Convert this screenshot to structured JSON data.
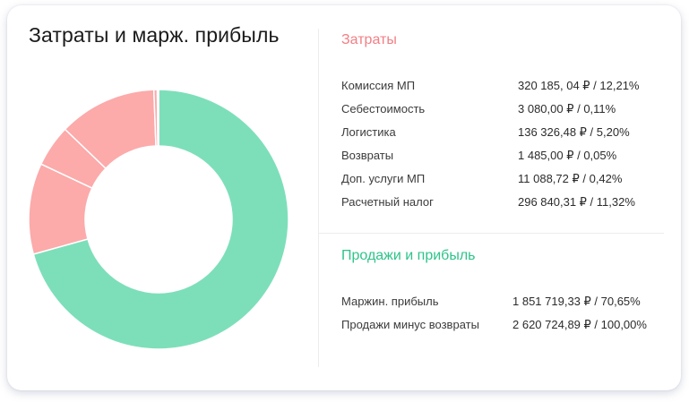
{
  "card": {
    "title": "Затраты и марж. прибыль"
  },
  "costs": {
    "title": "Затраты",
    "color": "#f27f84",
    "rows": [
      {
        "label": "Комиссия МП",
        "value": "320 185, 04 ₽ / 12,21%"
      },
      {
        "label": "Себестоимость",
        "value": "3 080,00 ₽ / 0,11%"
      },
      {
        "label": "Логистика",
        "value": "136 326,48 ₽ / 5,20%"
      },
      {
        "label": "Возвраты",
        "value": "1 485,00 ₽ / 0,05%"
      },
      {
        "label": "Доп. услуги МП",
        "value": "11 088,72 ₽ / 0,42%"
      },
      {
        "label": "Расчетный налог",
        "value": "296 840,31 ₽ / 11,32%"
      }
    ]
  },
  "sales": {
    "title": "Продажи и прибыль",
    "color": "#2ec48a",
    "rows": [
      {
        "label": "Маржин. прибыль",
        "value": "1 851 719,33 ₽ / 70,65%"
      },
      {
        "label": "Продажи минус возвраты",
        "value": "2 620 724,89 ₽ / 100,00%"
      }
    ]
  },
  "chart_data": {
    "type": "pie",
    "title": "Затраты и марж. прибыль",
    "labels": [
      "Маржин. прибыль",
      "Расчетный налог",
      "Логистика",
      "Комиссия МП",
      "Доп. услуги МП",
      "Возвраты",
      "Себестоимость"
    ],
    "values": [
      70.65,
      11.32,
      5.2,
      12.21,
      0.42,
      0.05,
      0.11
    ],
    "colors": [
      "#7ddfba",
      "#fcaaaa",
      "#fcaaaa",
      "#fcaaaa",
      "#fcaaaa",
      "#fcaaaa",
      "#fcaaaa"
    ],
    "donut": true,
    "start_angle_deg": 0,
    "direction": "clockwise"
  }
}
